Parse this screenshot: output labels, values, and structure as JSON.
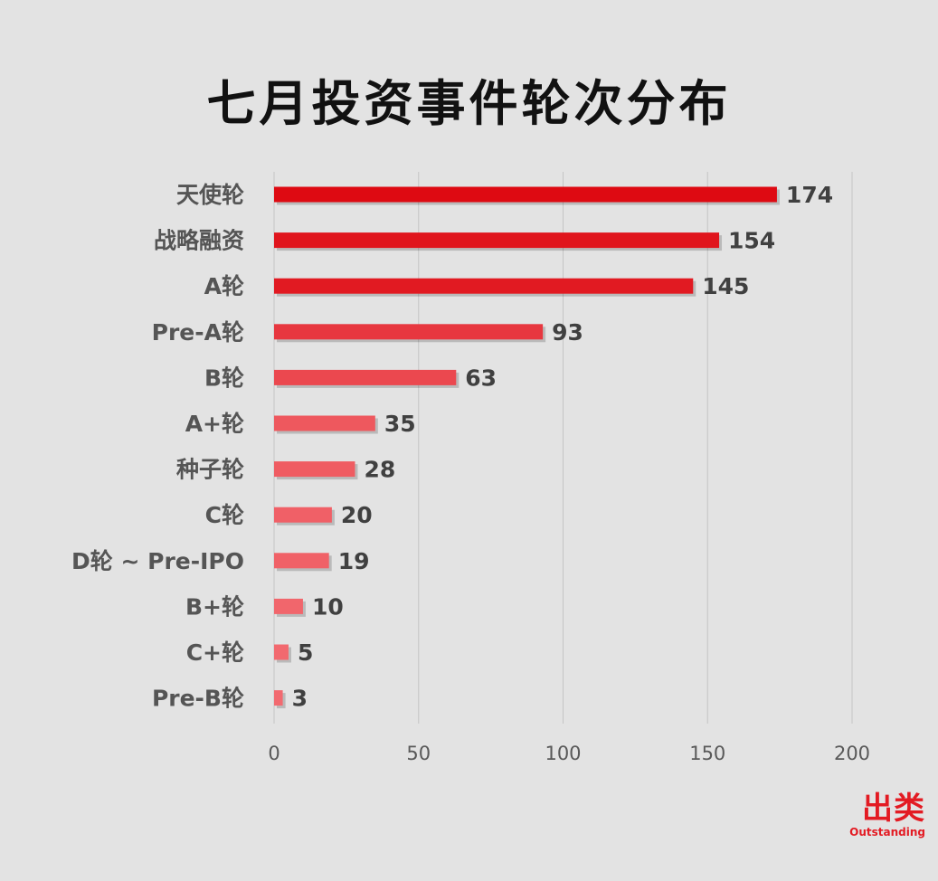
{
  "chart_data": {
    "type": "bar",
    "orientation": "horizontal",
    "title": "七月投资事件轮次分布",
    "categories": [
      "天使轮",
      "战略融资",
      "A轮",
      "Pre-A轮",
      "B轮",
      "A+轮",
      "种子轮",
      "C轮",
      "D轮 ~ Pre-IPO",
      "B+轮",
      "C+轮",
      "Pre-B轮"
    ],
    "values": [
      174,
      154,
      145,
      93,
      63,
      35,
      28,
      20,
      19,
      10,
      5,
      3
    ],
    "xlim": [
      0,
      200
    ],
    "xticks": [
      0,
      50,
      100,
      150,
      200
    ],
    "grid": "vertical",
    "bar_color_max": "#de0a12",
    "bar_color_min": "#f26a70"
  },
  "brand": {
    "name_cn": "出类",
    "name_en": "Outstanding",
    "color": "#e31b23"
  }
}
